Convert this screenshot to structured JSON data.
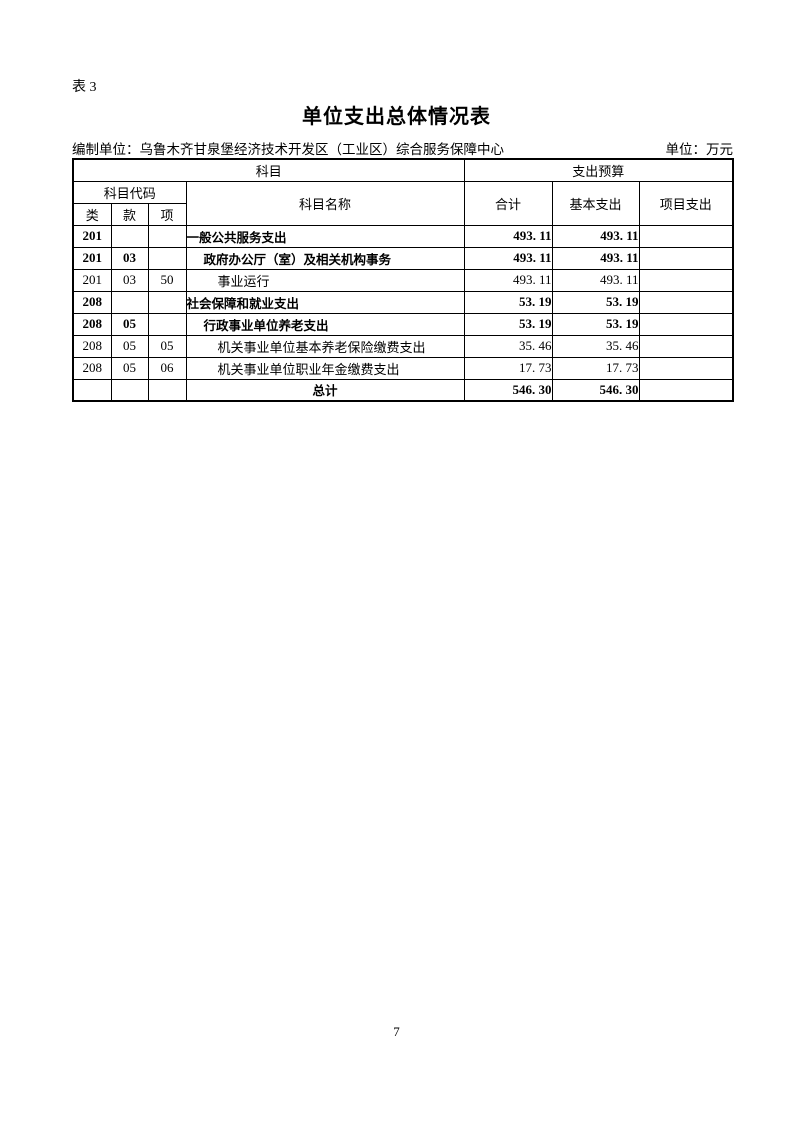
{
  "page": {
    "table_label": "表 3",
    "title": "单位支出总体情况表",
    "prepared_by": "编制单位：乌鲁木齐甘泉堡经济技术开发区（工业区）综合服务保障中心",
    "unit_label": "单位：万元",
    "page_number": "7"
  },
  "table": {
    "header": {
      "subject_group": "科目",
      "budget_group": "支出预算",
      "code_group": "科目代码",
      "name_col": "科目名称",
      "total_col": "合计",
      "basic_col": "基本支出",
      "project_col": "项目支出",
      "class_col": "类",
      "section_col": "款",
      "item_col": "项"
    },
    "rows": [
      {
        "class": "201",
        "section": "",
        "item": "",
        "name": "一般公共服务支出",
        "total": "493. 11",
        "basic": "493. 11",
        "project": ""
      },
      {
        "class": "201",
        "section": "03",
        "item": "",
        "name": "政府办公厅（室）及相关机构事务",
        "total": "493. 11",
        "basic": "493. 11",
        "project": ""
      },
      {
        "class": "201",
        "section": "03",
        "item": "50",
        "name": "事业运行",
        "total": "493. 11",
        "basic": "493. 11",
        "project": ""
      },
      {
        "class": "208",
        "section": "",
        "item": "",
        "name": "社会保障和就业支出",
        "total": "53. 19",
        "basic": "53. 19",
        "project": ""
      },
      {
        "class": "208",
        "section": "05",
        "item": "",
        "name": "行政事业单位养老支出",
        "total": "53. 19",
        "basic": "53. 19",
        "project": ""
      },
      {
        "class": "208",
        "section": "05",
        "item": "05",
        "name": "机关事业单位基本养老保险缴费支出",
        "total": "35. 46",
        "basic": "35. 46",
        "project": ""
      },
      {
        "class": "208",
        "section": "05",
        "item": "06",
        "name": "机关事业单位职业年金缴费支出",
        "total": "17. 73",
        "basic": "17. 73",
        "project": ""
      },
      {
        "class": "",
        "section": "",
        "item": "",
        "name": "总计",
        "total": "546. 30",
        "basic": "546. 30",
        "project": ""
      }
    ]
  }
}
